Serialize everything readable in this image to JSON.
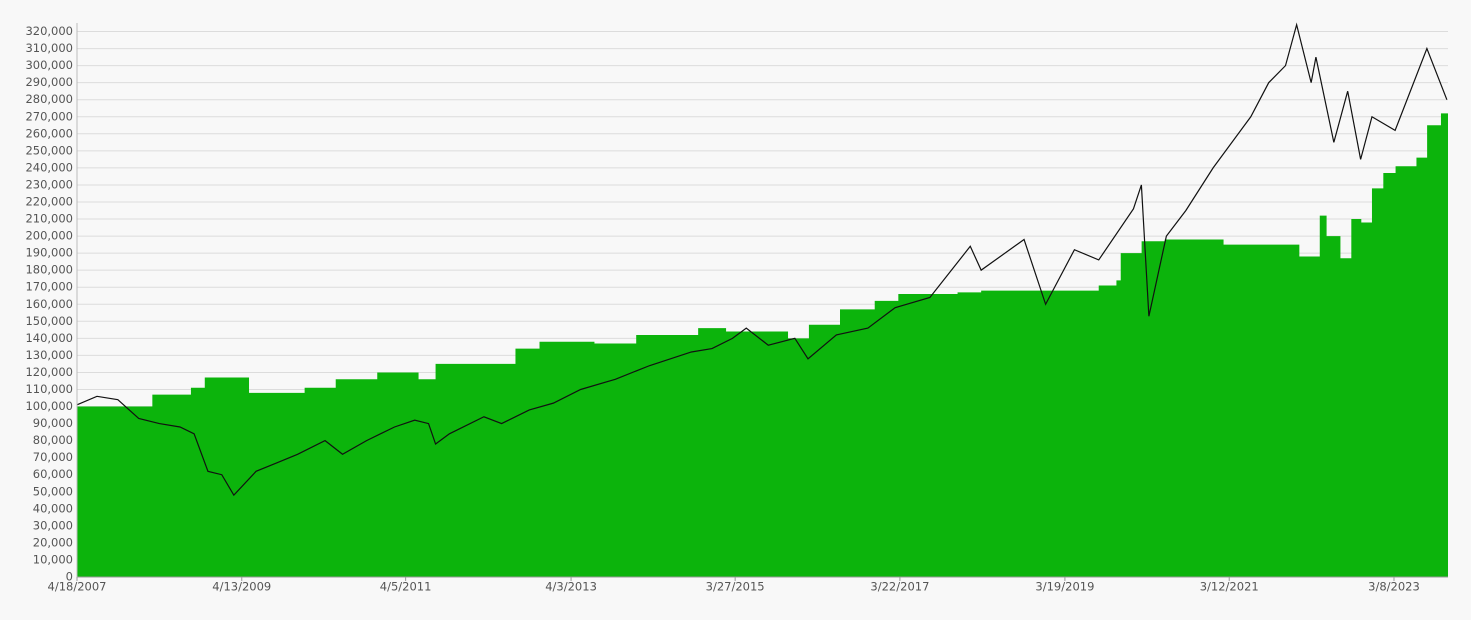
{
  "chart_data": {
    "type": "combo",
    "xlim": [
      "4/18/2007",
      "11/1/2023"
    ],
    "xticks": [
      "4/18/2007",
      "4/13/2009",
      "4/5/2011",
      "4/3/2013",
      "3/27/2015",
      "3/22/2017",
      "3/19/2019",
      "3/12/2021",
      "3/8/2023"
    ],
    "ylim": [
      0,
      325000
    ],
    "yticks": [
      0,
      {
        "value": 10000,
        "label": "10,000"
      },
      {
        "value": 20000,
        "label": "20,000"
      },
      {
        "value": 30000,
        "label": "30,000"
      },
      {
        "value": 40000,
        "label": "40,000"
      },
      {
        "value": 50000,
        "label": "50,000"
      },
      {
        "value": 60000,
        "label": "60,000"
      },
      {
        "value": 70000,
        "label": "70,000"
      },
      {
        "value": 80000,
        "label": "80,000"
      },
      {
        "value": 90000,
        "label": "90,000"
      },
      {
        "value": 100000,
        "label": "100,000"
      },
      {
        "value": 110000,
        "label": "110,000"
      },
      {
        "value": 120000,
        "label": "120,000"
      },
      {
        "value": 130000,
        "label": "130,000"
      },
      {
        "value": 140000,
        "label": "140,000"
      },
      {
        "value": 150000,
        "label": "150,000"
      },
      {
        "value": 160000,
        "label": "160,000"
      },
      {
        "value": 170000,
        "label": "170,000"
      },
      {
        "value": 180000,
        "label": "180,000"
      },
      {
        "value": 190000,
        "label": "190,000"
      },
      {
        "value": 200000,
        "label": "200,000"
      },
      {
        "value": 210000,
        "label": "210,000"
      },
      {
        "value": 220000,
        "label": "220,000"
      },
      {
        "value": 230000,
        "label": "230,000"
      },
      {
        "value": 240000,
        "label": "240,000"
      },
      {
        "value": 250000,
        "label": "250,000"
      },
      {
        "value": 260000,
        "label": "260,000"
      },
      {
        "value": 270000,
        "label": "270,000"
      },
      {
        "value": 280000,
        "label": "280,000"
      },
      {
        "value": 290000,
        "label": "290,000"
      },
      {
        "value": 300000,
        "label": "300,000"
      },
      {
        "value": 310000,
        "label": "310,000"
      },
      {
        "value": 320000,
        "label": "320,000"
      }
    ],
    "grid": true,
    "series": [
      {
        "kind": "step-area",
        "color": "#0cb40c",
        "x": [
          "4/18/2007",
          "3/15/2008",
          "9/1/2008",
          "11/1/2008",
          "5/15/2009",
          "1/15/2010",
          "6/1/2010",
          "12/1/2010",
          "6/1/2011",
          "8/15/2011",
          "8/1/2012",
          "11/15/2012",
          "7/15/2013",
          "1/15/2014",
          "10/15/2014",
          "2/15/2015",
          "11/15/2015",
          "2/15/2016",
          "7/1/2016",
          "12/1/2016",
          "3/15/2017",
          "12/1/2017",
          "3/15/2018",
          "8/15/2019",
          "11/1/2019",
          "11/20/2019",
          "2/20/2020",
          "6/1/2020",
          "2/15/2021",
          "1/15/2022",
          "4/15/2022",
          "5/15/2022",
          "7/15/2022",
          "9/1/2022",
          "10/15/2022",
          "12/1/2022",
          "1/20/2023",
          "3/15/2023",
          "6/15/2023",
          "8/1/2023",
          "10/1/2023"
        ],
        "values": [
          100000,
          107000,
          111000,
          117000,
          108000,
          111000,
          116000,
          120000,
          116000,
          125000,
          134000,
          138000,
          137000,
          142000,
          146000,
          144000,
          140000,
          148000,
          157000,
          162000,
          166000,
          167000,
          168000,
          171000,
          174000,
          190000,
          197000,
          198000,
          195000,
          188000,
          212000,
          200000,
          187000,
          210000,
          208000,
          228000,
          237000,
          241000,
          246000,
          265000,
          272000
        ]
      },
      {
        "kind": "line",
        "color": "#111111",
        "x": [
          "4/18/2007",
          "7/15/2007",
          "10/15/2007",
          "1/15/2008",
          "4/15/2008",
          "7/15/2008",
          "9/15/2008",
          "11/15/2008",
          "1/15/2009",
          "3/9/2009",
          "6/15/2009",
          "9/15/2009",
          "12/15/2009",
          "4/15/2010",
          "7/1/2010",
          "10/15/2010",
          "2/15/2011",
          "5/15/2011",
          "7/15/2011",
          "8/15/2011",
          "10/15/2011",
          "3/15/2012",
          "6/1/2012",
          "10/1/2012",
          "1/15/2013",
          "5/15/2013",
          "10/15/2013",
          "3/15/2014",
          "9/15/2014",
          "12/15/2014",
          "3/15/2015",
          "5/15/2015",
          "8/20/2015",
          "12/15/2015",
          "2/11/2016",
          "6/15/2016",
          "11/1/2016",
          "3/1/2017",
          "8/1/2017",
          "1/26/2018",
          "3/15/2018",
          "9/20/2018",
          "12/24/2018",
          "4/30/2019",
          "8/15/2019",
          "1/15/2020",
          "2/19/2020",
          "3/23/2020",
          "6/8/2020",
          "9/2/2020",
          "12/31/2020",
          "6/15/2021",
          "9/2/2021",
          "11/15/2021",
          "1/3/2022",
          "3/8/2022",
          "3/29/2022",
          "6/16/2022",
          "8/16/2022",
          "10/12/2022",
          "12/1/2022",
          "3/13/2023",
          "7/31/2023",
          "10/27/2023"
        ],
        "values": [
          101000,
          106000,
          104000,
          93000,
          90000,
          88000,
          84000,
          62000,
          60000,
          48000,
          62000,
          67000,
          72000,
          80000,
          72000,
          80000,
          88000,
          92000,
          90000,
          78000,
          84000,
          94000,
          90000,
          98000,
          102000,
          110000,
          116000,
          124000,
          132000,
          134000,
          140000,
          146000,
          136000,
          140000,
          128000,
          142000,
          146000,
          158000,
          164000,
          194000,
          180000,
          198000,
          160000,
          192000,
          186000,
          216000,
          230000,
          153000,
          200000,
          215000,
          240000,
          270000,
          290000,
          300000,
          324000,
          290000,
          305000,
          255000,
          285000,
          245000,
          270000,
          262000,
          310000,
          280000
        ]
      }
    ]
  }
}
